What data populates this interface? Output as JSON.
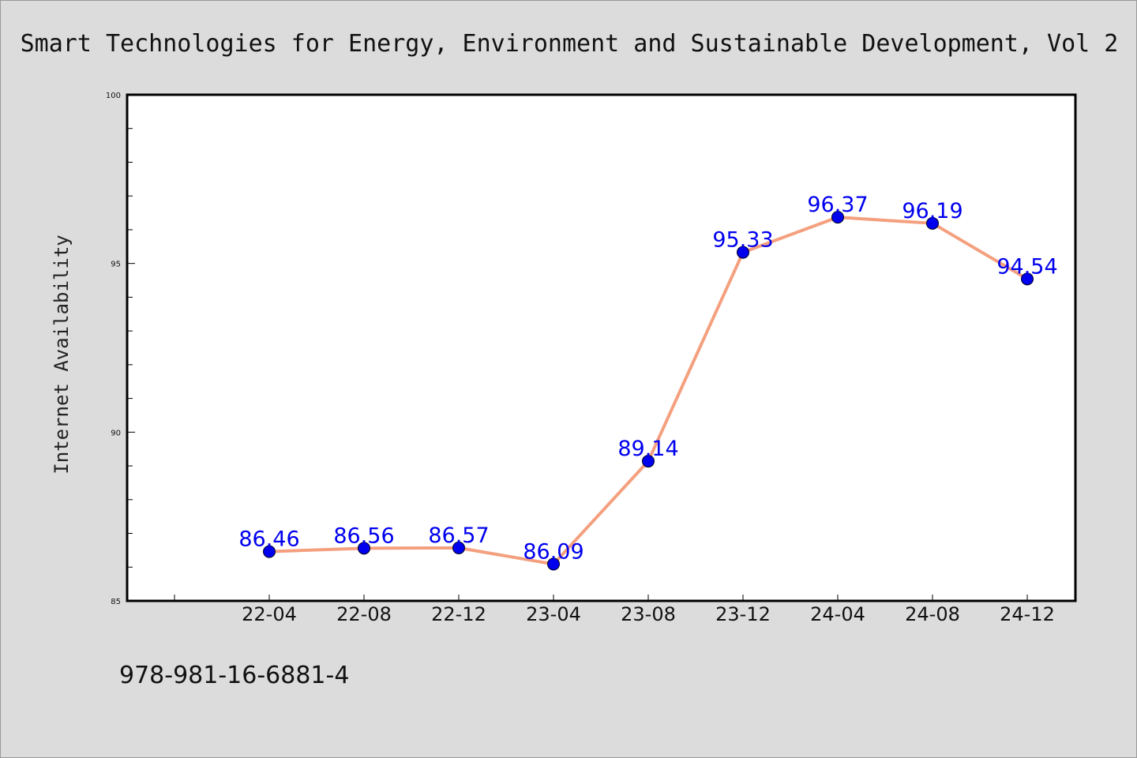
{
  "colors": {
    "background": "#dcdcdc",
    "plot_background": "#ffffff",
    "line": "#f4a07f",
    "marker": "#0000ee",
    "data_label": "#0000ee"
  },
  "footer": {
    "isbn": "978-981-16-6881-4"
  },
  "chart_data": {
    "type": "line",
    "title": "Smart Technologies for Energy, Environment and Sustainable Development, Vol 2",
    "xlabel": "",
    "ylabel": "Internet Availability",
    "categories": [
      "22-04",
      "22-08",
      "22-12",
      "23-04",
      "23-08",
      "23-12",
      "24-04",
      "24-08",
      "24-12"
    ],
    "series": [
      {
        "values": [
          86.46,
          86.56,
          86.57,
          86.09,
          89.14,
          95.33,
          96.37,
          96.19,
          94.54
        ],
        "labels": [
          "86.46",
          "86.56",
          "86.57",
          "86.09",
          "89.14",
          "95.33",
          "96.37",
          "96.19",
          "94.54"
        ]
      }
    ],
    "ylim": [
      85,
      100
    ],
    "yticks": [
      "85",
      "90",
      "95",
      "100"
    ],
    "ytick_values": [
      85,
      90,
      95,
      100
    ],
    "grid": false,
    "legend": "none",
    "markers": "circle"
  }
}
